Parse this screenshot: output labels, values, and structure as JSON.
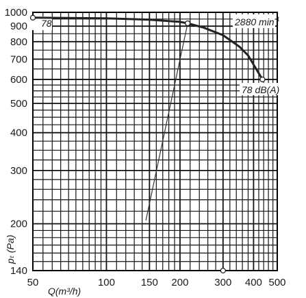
{
  "chart_data": {
    "type": "line",
    "x_scale": "log",
    "y_scale": "log",
    "xlim": [
      50,
      500
    ],
    "ylim": [
      140,
      1000
    ],
    "x_ticks": [
      50,
      100,
      150,
      200,
      300,
      400,
      500
    ],
    "y_ticks": [
      1000,
      900,
      800,
      700,
      600,
      500,
      400,
      300,
      200,
      140
    ],
    "xlabel": "Q(m³/h)",
    "ylabel": "pₜ (Pa)",
    "grid": true,
    "series": [
      {
        "x": [
          50,
          100,
          150,
          200,
          215,
          250,
          300,
          350,
          380,
          410,
          435
        ],
        "y": [
          960,
          955,
          945,
          930,
          920,
          890,
          840,
          770,
          720,
          650,
          600
        ],
        "color": "#222222"
      }
    ],
    "system_curve": {
      "x": [
        145,
        215
      ],
      "y": [
        205,
        920
      ],
      "color": "#333333"
    },
    "markers": [
      {
        "x": 50,
        "y": 960
      },
      {
        "x": 215,
        "y": 920
      },
      {
        "x": 435,
        "y": 600
      },
      {
        "x": 300,
        "y": 140
      }
    ],
    "annotations": {
      "series_label": "78",
      "speed": "2880 min",
      "speed_sup": "-1",
      "noise": "78 dB(A)"
    }
  }
}
